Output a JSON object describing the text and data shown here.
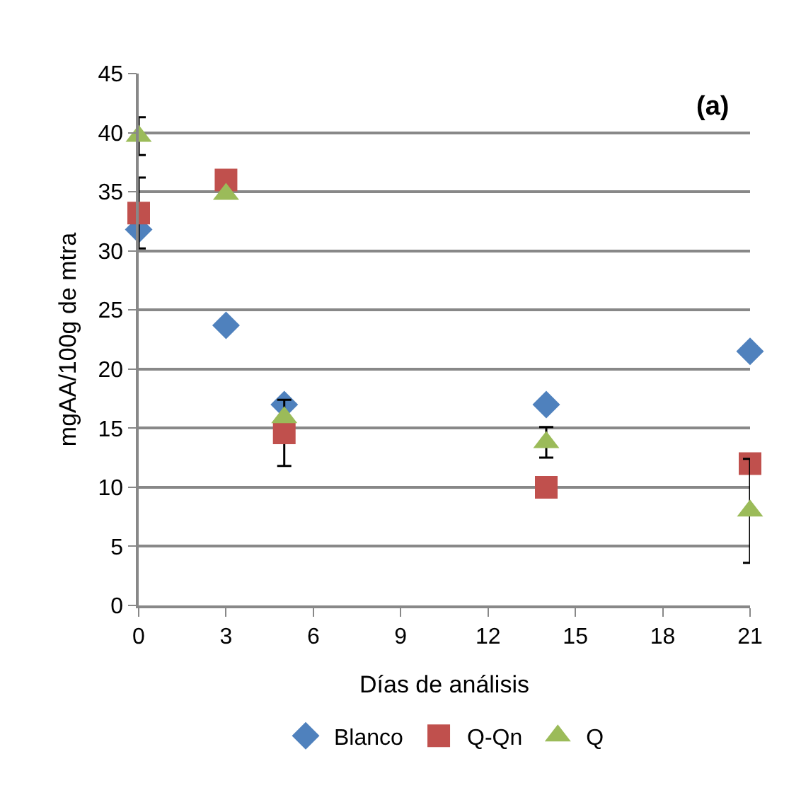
{
  "chart_data": {
    "type": "scatter",
    "xlabel": "Días de análisis",
    "ylabel": "mgAA/100g de mtra",
    "annotations": [
      "(a)"
    ],
    "x": [
      0,
      3,
      5,
      14,
      21
    ],
    "xlim": [
      0,
      21
    ],
    "xticks": [
      0,
      3,
      6,
      9,
      12,
      15,
      18,
      21
    ],
    "ylim": [
      0,
      45
    ],
    "yticks": [
      0,
      5,
      10,
      15,
      20,
      25,
      30,
      35,
      40,
      45
    ],
    "grid": "y",
    "legend": "bottom",
    "series": [
      {
        "name": "Blanco",
        "color": "#4f81bd",
        "marker": "diamond",
        "values": [
          31.8,
          23.7,
          17,
          17,
          21.5
        ]
      },
      {
        "name": "Q-Qn",
        "color": "#c0504d",
        "marker": "square",
        "values": [
          33.2,
          36,
          14.6,
          10,
          12
        ],
        "errors": [
          3,
          null,
          2.8,
          null,
          null
        ]
      },
      {
        "name": "Q",
        "color": "#9bbb59",
        "marker": "triangle",
        "values": [
          39.7,
          34.8,
          15.9,
          13.8,
          8
        ],
        "errors": [
          1.6,
          null,
          null,
          1.3,
          4.4
        ]
      }
    ]
  }
}
